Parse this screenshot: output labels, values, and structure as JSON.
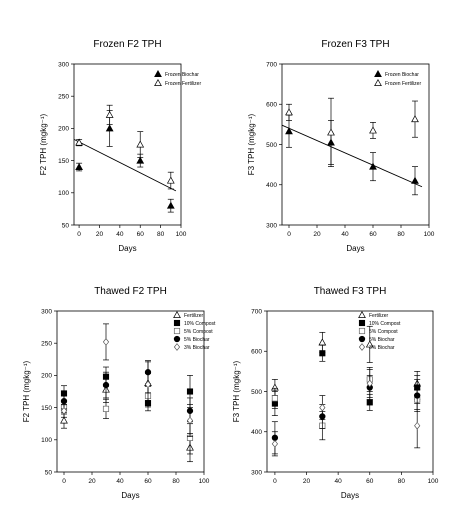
{
  "chart_data": [
    {
      "type": "scatter",
      "title": "Frozen F2 TPH",
      "xlabel": "Days",
      "ylabel": "F2 TPH (mgkg⁻¹)",
      "xlim": [
        -5,
        100
      ],
      "ylim": [
        50,
        300
      ],
      "xticks": [
        0,
        20,
        40,
        60,
        80,
        100
      ],
      "yticks": [
        50,
        100,
        150,
        200,
        250,
        300
      ],
      "legend_position": "top-right",
      "trendline": {
        "x": [
          -5,
          95
        ],
        "y": [
          183,
          103
        ]
      },
      "series": [
        {
          "name": "Frozen Biochar",
          "marker": "triangle-filled",
          "x": [
            0,
            30,
            60,
            90
          ],
          "y": [
            140,
            200,
            150,
            80
          ],
          "err": [
            6,
            28,
            10,
            10
          ]
        },
        {
          "name": "Frozen Fertilizer",
          "marker": "triangle-open",
          "x": [
            0,
            30,
            60,
            90
          ],
          "y": [
            178,
            221,
            175,
            119
          ],
          "err": [
            5,
            15,
            20,
            13
          ]
        }
      ]
    },
    {
      "type": "scatter",
      "title": "Frozen F3 TPH",
      "xlabel": "Days",
      "ylabel": "F3 TPH (mgkg⁻¹)",
      "xlim": [
        -5,
        100
      ],
      "ylim": [
        300,
        700
      ],
      "xticks": [
        0,
        20,
        40,
        60,
        80,
        100
      ],
      "yticks": [
        300,
        400,
        500,
        600,
        700
      ],
      "legend_position": "top-right",
      "trendline": {
        "x": [
          -5,
          95
        ],
        "y": [
          548,
          395
        ]
      },
      "series": [
        {
          "name": "Frozen Biochar",
          "marker": "triangle-filled",
          "x": [
            0,
            30,
            60,
            90
          ],
          "y": [
            533,
            505,
            445,
            410
          ],
          "err": [
            40,
            55,
            35,
            35
          ]
        },
        {
          "name": "Frozen Fertilizer",
          "marker": "triangle-open",
          "x": [
            0,
            30,
            60,
            90
          ],
          "y": [
            580,
            530,
            535,
            563
          ],
          "err": [
            20,
            85,
            20,
            45
          ]
        }
      ]
    },
    {
      "type": "scatter",
      "title": "Thawed F2 TPH",
      "xlabel": "Days",
      "ylabel": "F2 TPH (mgkg⁻¹)",
      "xlim": [
        -5,
        100
      ],
      "ylim": [
        50,
        300
      ],
      "xticks": [
        0,
        20,
        40,
        60,
        80,
        100
      ],
      "yticks": [
        50,
        100,
        150,
        200,
        250,
        300
      ],
      "legend_position": "top-right",
      "series": [
        {
          "name": "Fertilizer",
          "marker": "triangle-open",
          "x": [
            0,
            30,
            60,
            90
          ],
          "y": [
            130,
            178,
            188,
            88
          ],
          "err": [
            12,
            20,
            15,
            22
          ]
        },
        {
          "name": "10% Compost",
          "marker": "square-filled",
          "x": [
            0,
            30,
            60,
            90
          ],
          "y": [
            172,
            198,
            157,
            175
          ],
          "err": [
            12,
            15,
            12,
            25
          ]
        },
        {
          "name": "5% Compost",
          "marker": "square-open",
          "x": [
            0,
            30,
            60,
            90
          ],
          "y": [
            150,
            148,
            168,
            103
          ],
          "err": [
            10,
            15,
            15,
            25
          ]
        },
        {
          "name": "5% Biochar",
          "marker": "circle-filled",
          "x": [
            0,
            30,
            60,
            90
          ],
          "y": [
            160,
            185,
            205,
            145
          ],
          "err": [
            12,
            20,
            18,
            20
          ]
        },
        {
          "name": "3% Biochar",
          "marker": "diamond-open",
          "x": [
            0,
            30,
            60,
            90
          ],
          "y": [
            145,
            252,
            186,
            130
          ],
          "err": [
            10,
            28,
            35,
            25
          ]
        }
      ]
    },
    {
      "type": "scatter",
      "title": "Thawed F3 TPH",
      "xlabel": "Days",
      "ylabel": "F3 TPH (mgkg⁻¹)",
      "xlim": [
        -5,
        100
      ],
      "ylim": [
        300,
        700
      ],
      "xticks": [
        0,
        20,
        40,
        60,
        80,
        100
      ],
      "yticks": [
        300,
        400,
        500,
        600,
        700
      ],
      "legend_position": "top-right",
      "series": [
        {
          "name": "Fertilizer",
          "marker": "triangle-open",
          "x": [
            0,
            30,
            60,
            90
          ],
          "y": [
            510,
            622,
            617,
            520
          ],
          "err": [
            20,
            25,
            45,
            30
          ]
        },
        {
          "name": "10% Compost",
          "marker": "square-filled",
          "x": [
            0,
            30,
            60,
            90
          ],
          "y": [
            470,
            595,
            473,
            510
          ],
          "err": [
            30,
            20,
            20,
            30
          ]
        },
        {
          "name": "5% Compost",
          "marker": "square-open",
          "x": [
            0,
            30,
            60,
            90
          ],
          "y": [
            483,
            415,
            530,
            480
          ],
          "err": [
            25,
            35,
            30,
            25
          ]
        },
        {
          "name": "5% Biochar",
          "marker": "circle-filled",
          "x": [
            0,
            30,
            60,
            90
          ],
          "y": [
            385,
            438,
            510,
            490
          ],
          "err": [
            40,
            30,
            30,
            40
          ]
        },
        {
          "name": "3% Biochar",
          "marker": "diamond-open",
          "x": [
            0,
            30,
            60,
            90
          ],
          "y": [
            370,
            460,
            520,
            415
          ],
          "err": [
            30,
            30,
            35,
            55
          ]
        }
      ]
    }
  ]
}
